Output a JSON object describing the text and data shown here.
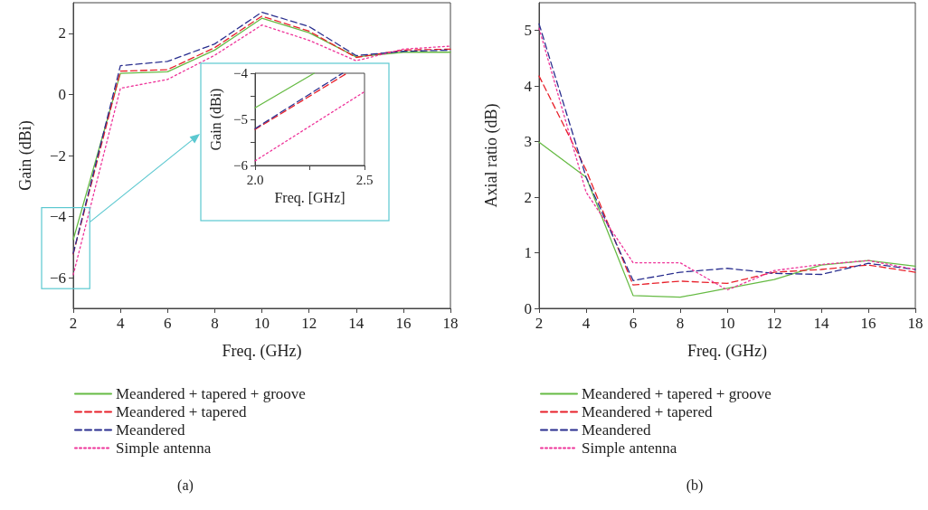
{
  "chart_data": [
    {
      "type": "line",
      "xlabel": "Freq. (GHz)",
      "ylabel": "Gain (dBi)",
      "x": [
        2,
        4,
        6,
        8,
        10,
        12,
        14,
        16,
        18
      ],
      "xlim": [
        2,
        18
      ],
      "xticks": [
        2,
        4,
        6,
        8,
        10,
        12,
        14,
        16,
        18
      ],
      "ylim": [
        -7,
        3
      ],
      "yticks": [
        {
          "value": -6,
          "label": "−6"
        },
        {
          "value": -4,
          "label": "−4"
        },
        {
          "value": -2,
          "label": "−2"
        },
        0,
        2
      ],
      "grid": false,
      "legend": "bottom",
      "annotations": [
        "(a)"
      ],
      "series": [
        {
          "name": "Meandered + tapered + groove",
          "color": "#66bb44",
          "line_style": "solid",
          "values": [
            -4.75,
            0.69,
            0.74,
            1.45,
            2.49,
            2.02,
            1.23,
            1.38,
            1.38
          ]
        },
        {
          "name": "Meandered + tapered",
          "color": "#e8202a",
          "line_style": "dashed",
          "values": [
            -5.22,
            0.76,
            0.81,
            1.53,
            2.56,
            2.07,
            1.21,
            1.45,
            1.48
          ]
        },
        {
          "name": "Meandered",
          "color": "#2a2f8f",
          "line_style": "dashed",
          "values": [
            -5.2,
            0.94,
            1.08,
            1.65,
            2.69,
            2.22,
            1.27,
            1.41,
            1.45
          ]
        },
        {
          "name": "Simple antenna",
          "color": "#ee3399",
          "line_style": "dotted",
          "values": [
            -5.9,
            0.2,
            0.49,
            1.28,
            2.27,
            1.77,
            1.1,
            1.48,
            1.58
          ]
        }
      ]
    },
    {
      "type": "line",
      "xlabel": "Freq. [GHz]",
      "ylabel": "Gain (dBi)",
      "xlim": [
        2,
        2.5
      ],
      "xticks": [
        {
          "value": 2,
          "label": "2.0"
        },
        {
          "value": 2.25,
          "label": null
        },
        {
          "value": 2.5,
          "label": "2.5"
        }
      ],
      "ylim": [
        -6,
        -4
      ],
      "yticks": [
        {
          "value": -6,
          "label": "−6"
        },
        {
          "value": -5.5,
          "label": null
        },
        {
          "value": -5,
          "label": "−5"
        },
        {
          "value": -4.5,
          "label": null
        },
        {
          "value": -4,
          "label": "−4"
        }
      ],
      "grid": false,
      "series": [
        {
          "color": "#66bb44",
          "line_style": "solid",
          "x": [
            2,
            2.27
          ],
          "values": [
            -4.75,
            -4
          ]
        },
        {
          "color": "#e8202a",
          "line_style": "dashed",
          "x": [
            2,
            2.42
          ],
          "values": [
            -5.22,
            -4
          ]
        },
        {
          "color": "#2a2f8f",
          "line_style": "dashed",
          "x": [
            2,
            2.4
          ],
          "values": [
            -5.2,
            -4
          ]
        },
        {
          "color": "#ee3399",
          "line_style": "dotted",
          "x": [
            2,
            2.5
          ],
          "values": [
            -5.9,
            -4.4
          ]
        }
      ]
    },
    {
      "type": "line",
      "xlabel": "Freq. (GHz)",
      "ylabel": "Axial ratio (dB)",
      "x": [
        2,
        4,
        6,
        8,
        10,
        12,
        14,
        16,
        18
      ],
      "xlim": [
        2,
        18
      ],
      "xticks": [
        2,
        4,
        6,
        8,
        10,
        12,
        14,
        16,
        18
      ],
      "ylim": [
        0,
        5.5
      ],
      "yticks": [
        0,
        1,
        2,
        3,
        4,
        5
      ],
      "grid": false,
      "legend": "bottom",
      "annotations": [
        "(b)"
      ],
      "series": [
        {
          "name": "Meandered + tapered + groove",
          "color": "#66bb44",
          "line_style": "solid",
          "values": [
            2.99,
            2.36,
            0.23,
            0.2,
            0.36,
            0.52,
            0.78,
            0.86,
            0.76
          ]
        },
        {
          "name": "Meandered + tapered",
          "color": "#e8202a",
          "line_style": "dashed",
          "values": [
            4.18,
            2.49,
            0.42,
            0.49,
            0.45,
            0.65,
            0.7,
            0.78,
            0.65
          ]
        },
        {
          "name": "Meandered",
          "color": "#2a2f8f",
          "line_style": "dashed",
          "values": [
            5.12,
            2.36,
            0.5,
            0.65,
            0.72,
            0.63,
            0.61,
            0.81,
            0.7
          ]
        },
        {
          "name": "Simple antenna",
          "color": "#ee3399",
          "line_style": "dotted",
          "values": [
            5.04,
            2.09,
            0.82,
            0.82,
            0.33,
            0.68,
            0.79,
            0.86,
            0.7
          ]
        }
      ]
    }
  ]
}
